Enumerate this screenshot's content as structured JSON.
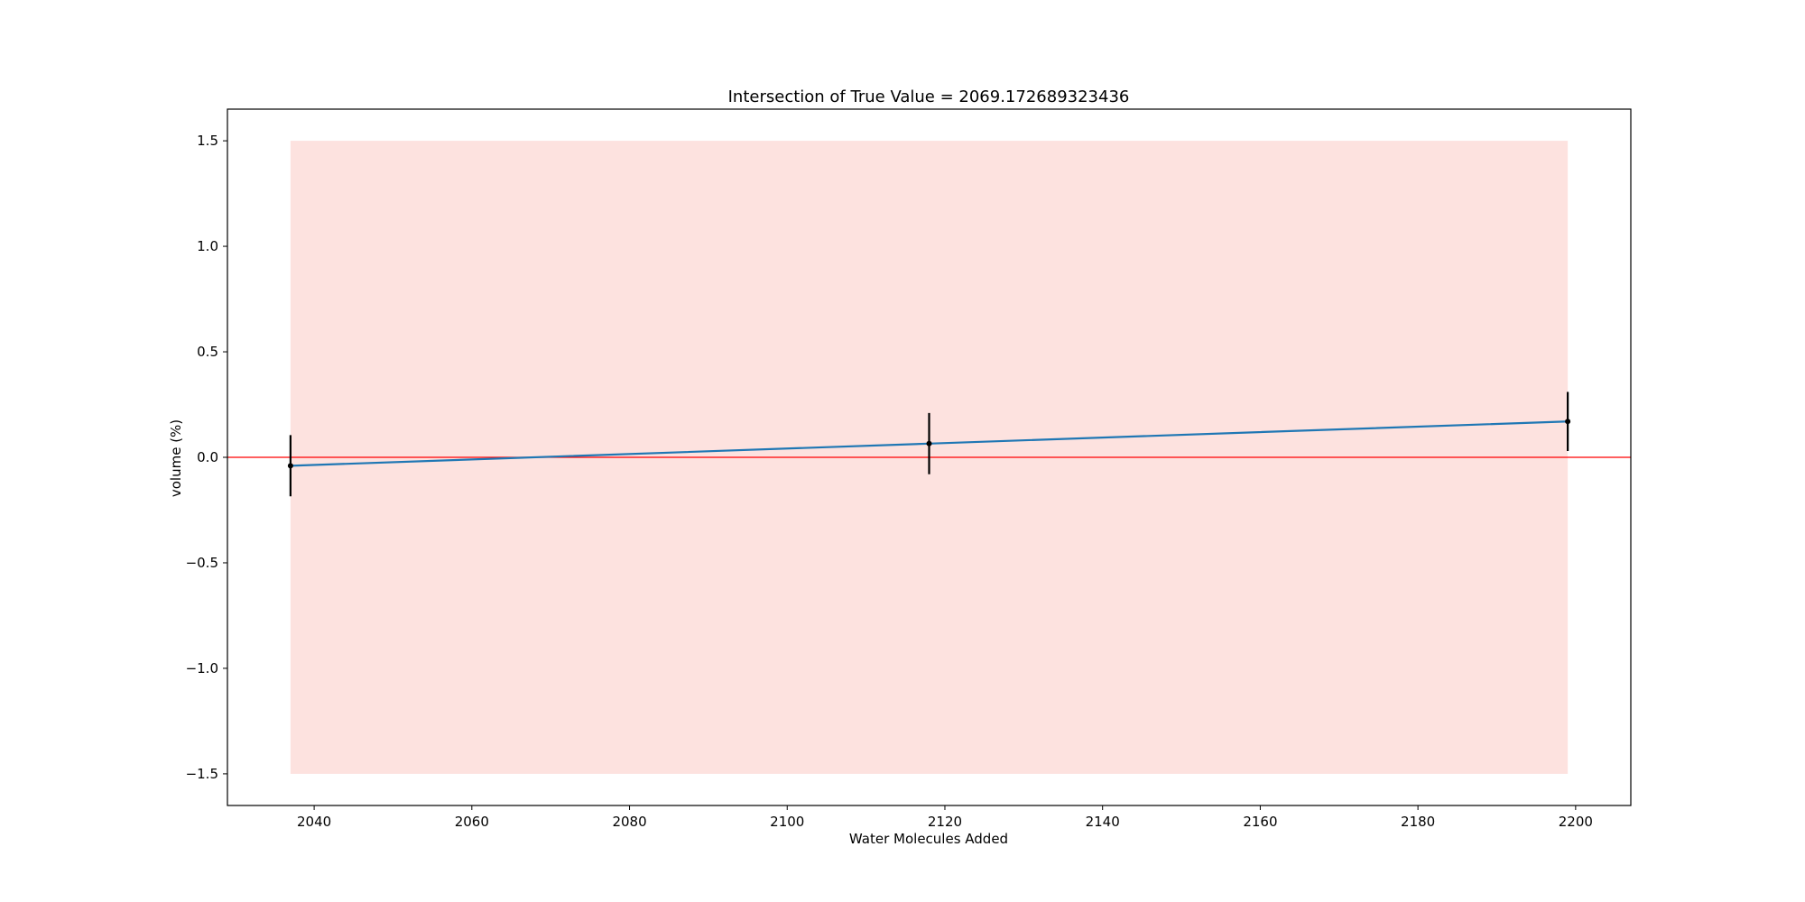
{
  "chart_data": {
    "type": "line",
    "title": "Intersection of True Value = 2069.172689323436",
    "xlabel": "Water Molecules Added",
    "ylabel": "volume (%)",
    "xlim": [
      2029,
      2207
    ],
    "ylim": [
      -1.65,
      1.65
    ],
    "xticks": [
      2040,
      2060,
      2080,
      2100,
      2120,
      2140,
      2160,
      2180,
      2200
    ],
    "yticks": [
      1.5,
      1.0,
      0.5,
      0.0,
      -0.5,
      -1.0,
      -1.5
    ],
    "ytick_labels": [
      "1.5",
      "1.0",
      "0.5",
      "0.0",
      "−0.5",
      "−1.0",
      "−1.5"
    ],
    "series": [
      {
        "x": [
          2037,
          2118,
          2199
        ],
        "y": [
          -0.04,
          0.065,
          0.17
        ],
        "yerr": [
          0.145,
          0.145,
          0.14
        ],
        "color": "#1f77b4",
        "marker_color": "#000000"
      }
    ],
    "reference_line": {
      "y": 0.0,
      "color": "#ff0000"
    },
    "shaded_band": {
      "x": [
        2037,
        2199
      ],
      "y": [
        -1.5,
        1.5
      ],
      "color": "#fde2df"
    },
    "grid": false
  }
}
